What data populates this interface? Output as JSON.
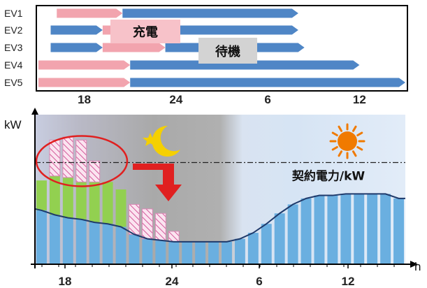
{
  "schedule": {
    "rows": [
      {
        "label": "EV1",
        "segments": [
          {
            "state": "charge",
            "start": 16.2,
            "end": 20.5
          },
          {
            "state": "idle",
            "start": 20.5,
            "end": 32.0
          }
        ]
      },
      {
        "label": "EV2",
        "segments": [
          {
            "state": "idle",
            "start": 15.8,
            "end": 19.2
          },
          {
            "state": "charge",
            "start": 19.2,
            "end": 23.0
          },
          {
            "state": "idle",
            "start": 23.0,
            "end": 32.0
          }
        ]
      },
      {
        "label": "EV3",
        "segments": [
          {
            "state": "idle",
            "start": 15.8,
            "end": 19.2
          },
          {
            "state": "charge",
            "start": 19.2,
            "end": 23.3
          },
          {
            "state": "idle",
            "start": 23.3,
            "end": 32.4
          }
        ]
      },
      {
        "label": "EV4",
        "segments": [
          {
            "state": "charge",
            "start": 15.0,
            "end": 21.0
          },
          {
            "state": "idle",
            "start": 21.0,
            "end": 36.0
          }
        ]
      },
      {
        "label": "EV5",
        "segments": [
          {
            "state": "charge",
            "start": 15.0,
            "end": 21.0
          },
          {
            "state": "idle",
            "start": 21.0,
            "end": 39.0
          }
        ]
      }
    ],
    "labels": {
      "charge": "充電",
      "idle": "待機"
    },
    "colors": {
      "charge": "#f2a4ae",
      "idle": "#4f86c6",
      "charge_label_bg": "#f7c2c9",
      "idle_label_bg": "#d3d3d3"
    }
  },
  "chart_data": {
    "type": "bar",
    "x_ticks": [
      "18",
      "24",
      "6",
      "12"
    ],
    "x_unit": "h",
    "y_unit": "kW",
    "contract_label": "契約電力/kW",
    "contract_level": 0.68,
    "bars": [
      {
        "base": 0.36,
        "add": 0.2,
        "shift": 0
      },
      {
        "base": 0.33,
        "add": 0.26,
        "shift": 0.24
      },
      {
        "base": 0.31,
        "add": 0.27,
        "shift": 0.27
      },
      {
        "base": 0.3,
        "add": 0.25,
        "shift": 0.28
      },
      {
        "base": 0.28,
        "add": 0.27,
        "shift": 0.14
      },
      {
        "base": 0.27,
        "add": 0.28,
        "shift": 0
      },
      {
        "base": 0.25,
        "add": 0.25,
        "shift": 0
      },
      {
        "base": 0.2,
        "add": 0,
        "shift": 0.2
      },
      {
        "base": 0.17,
        "add": 0,
        "shift": 0.2
      },
      {
        "base": 0.16,
        "add": 0,
        "shift": 0.18
      },
      {
        "base": 0.15,
        "add": 0,
        "shift": 0.07
      },
      {
        "base": 0.15,
        "add": 0,
        "shift": 0
      },
      {
        "base": 0.15,
        "add": 0,
        "shift": 0
      },
      {
        "base": 0.15,
        "add": 0,
        "shift": 0
      },
      {
        "base": 0.15,
        "add": 0,
        "shift": 0
      },
      {
        "base": 0.17,
        "add": 0,
        "shift": 0
      },
      {
        "base": 0.21,
        "add": 0,
        "shift": 0
      },
      {
        "base": 0.27,
        "add": 0,
        "shift": 0
      },
      {
        "base": 0.34,
        "add": 0,
        "shift": 0
      },
      {
        "base": 0.4,
        "add": 0,
        "shift": 0
      },
      {
        "base": 0.44,
        "add": 0,
        "shift": 0
      },
      {
        "base": 0.46,
        "add": 0,
        "shift": 0
      },
      {
        "base": 0.46,
        "add": 0,
        "shift": 0
      },
      {
        "base": 0.47,
        "add": 0,
        "shift": 0
      },
      {
        "base": 0.47,
        "add": 0,
        "shift": 0
      },
      {
        "base": 0.47,
        "add": 0,
        "shift": 0
      },
      {
        "base": 0.47,
        "add": 0,
        "shift": 0
      },
      {
        "base": 0.44,
        "add": 0,
        "shift": 0
      }
    ],
    "colors": {
      "base": "#6aafe0",
      "add": "#92d050",
      "shift_fill": "#fbe4f0",
      "shift_hatch": "#d45a9a",
      "line": "#1f3a6b",
      "circle": "#e02020",
      "arrow": "#e02020",
      "moon": "#f5d000",
      "sun": "#f07a00"
    }
  }
}
